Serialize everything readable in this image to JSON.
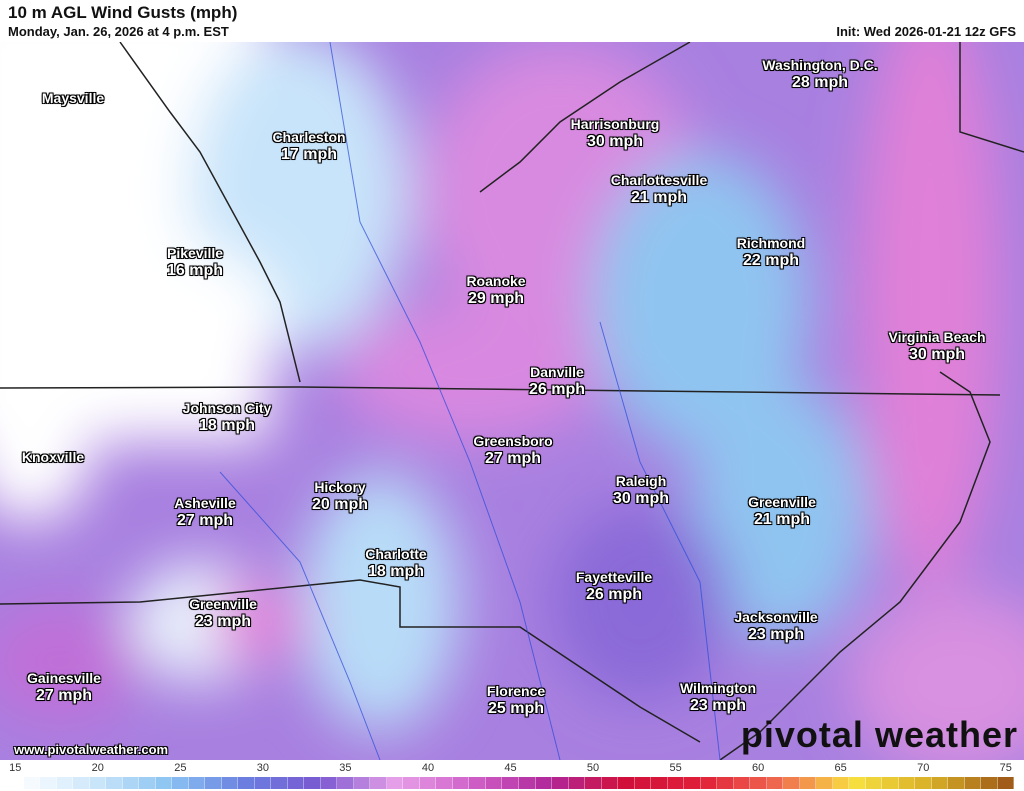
{
  "header": {
    "title": "10 m AGL Wind Gusts (mph)",
    "valid_time": "Monday, Jan. 26, 2026 at 4 p.m. EST",
    "init": "Init: Wed 2026-01-21 12z GFS"
  },
  "cities": [
    {
      "name": "Maysville",
      "value": ""
    },
    {
      "name": "Charleston",
      "value": "17 mph"
    },
    {
      "name": "Pikeville",
      "value": "16 mph"
    },
    {
      "name": "Washington, D.C.",
      "value": "28 mph"
    },
    {
      "name": "Harrisonburg",
      "value": "30 mph"
    },
    {
      "name": "Charlottesville",
      "value": "21 mph"
    },
    {
      "name": "Richmond",
      "value": "22 mph"
    },
    {
      "name": "Roanoke",
      "value": "29 mph"
    },
    {
      "name": "Virginia Beach",
      "value": "30 mph"
    },
    {
      "name": "Danville",
      "value": "26 mph"
    },
    {
      "name": "Johnson City",
      "value": "18 mph"
    },
    {
      "name": "Knoxville",
      "value": ""
    },
    {
      "name": "Greensboro",
      "value": "27 mph"
    },
    {
      "name": "Hickory",
      "value": "20 mph"
    },
    {
      "name": "Raleigh",
      "value": "30 mph"
    },
    {
      "name": "Asheville",
      "value": "27 mph"
    },
    {
      "name": "Greenville",
      "value": "21 mph"
    },
    {
      "name": "Charlotte",
      "value": "18 mph"
    },
    {
      "name": "Fayetteville",
      "value": "26 mph"
    },
    {
      "name": "Greenville",
      "value": "23 mph"
    },
    {
      "name": "Jacksonville",
      "value": "23 mph"
    },
    {
      "name": "Gainesville",
      "value": "27 mph"
    },
    {
      "name": "Florence",
      "value": "25 mph"
    },
    {
      "name": "Wilmington",
      "value": "23 mph"
    }
  ],
  "footer": {
    "url": "www.pivotalweather.com",
    "logo": "pivotal weather"
  },
  "colorbar": {
    "ticks": [
      "15",
      "20",
      "25",
      "30",
      "35",
      "40",
      "45",
      "50",
      "55",
      "60",
      "65",
      "70",
      "75"
    ],
    "min": 15,
    "max": 76,
    "stops": [
      "#ffffff",
      "#cfe8fb",
      "#8cc4f2",
      "#6a7fe0",
      "#7a58d0",
      "#e6a0e8",
      "#d060c8",
      "#b0289a",
      "#d0103a",
      "#e02038",
      "#f06850",
      "#f8e040",
      "#d8b028",
      "#a05c18"
    ]
  }
}
